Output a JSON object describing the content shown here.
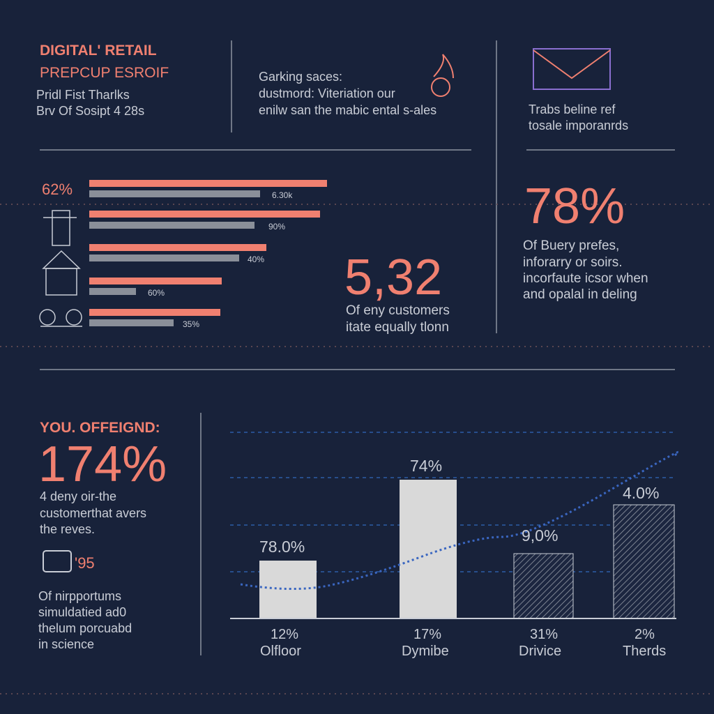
{
  "header": {
    "title": "DIGITAL' RETAIL",
    "subtitle": "PREPCUP ESROIF",
    "lines": [
      "Pridl Fist Tharlks",
      "Brv Of Sosipt 4 28s"
    ]
  },
  "intro": {
    "lines": [
      "Garking saces:",
      "dustmord: Viteriation our",
      "enilw san the mabic ental s-ales"
    ]
  },
  "envelope_note": {
    "lines": [
      "Trabs beline ref",
      "tosale imporanrds"
    ]
  },
  "bar_list": {
    "label": "62%",
    "bar_labels": [
      "6.30k",
      "90%",
      "40%",
      "60%",
      "35%"
    ]
  },
  "stat_center": {
    "value": "5,32",
    "lines": [
      "Of eny customers",
      "itate equally tlonn"
    ]
  },
  "stat_right": {
    "value": "78%",
    "lines": [
      "Of Buery prefes,",
      "inforarry or soirs.",
      "incorfaute icsor when",
      "and opalal in deling"
    ]
  },
  "bottom_left": {
    "heading": "YOU. OFFEIGND:",
    "value": "174%",
    "lines": [
      "4 deny oir-the",
      "customerthat avers",
      "the reves."
    ],
    "icon_text": "'95",
    "notes": [
      "Of nirpportums",
      "simuldatied ad0",
      "thelum porcuabd",
      "in science"
    ]
  },
  "column_chart": {
    "top_labels": [
      "78.0%",
      "74%",
      "9,0%",
      "4.0%"
    ],
    "bottom_values": [
      "12%",
      "17%",
      "31%",
      "2%"
    ],
    "categories": [
      "Olfloor",
      "Dymibe",
      "Drivice",
      "Therds"
    ]
  }
}
